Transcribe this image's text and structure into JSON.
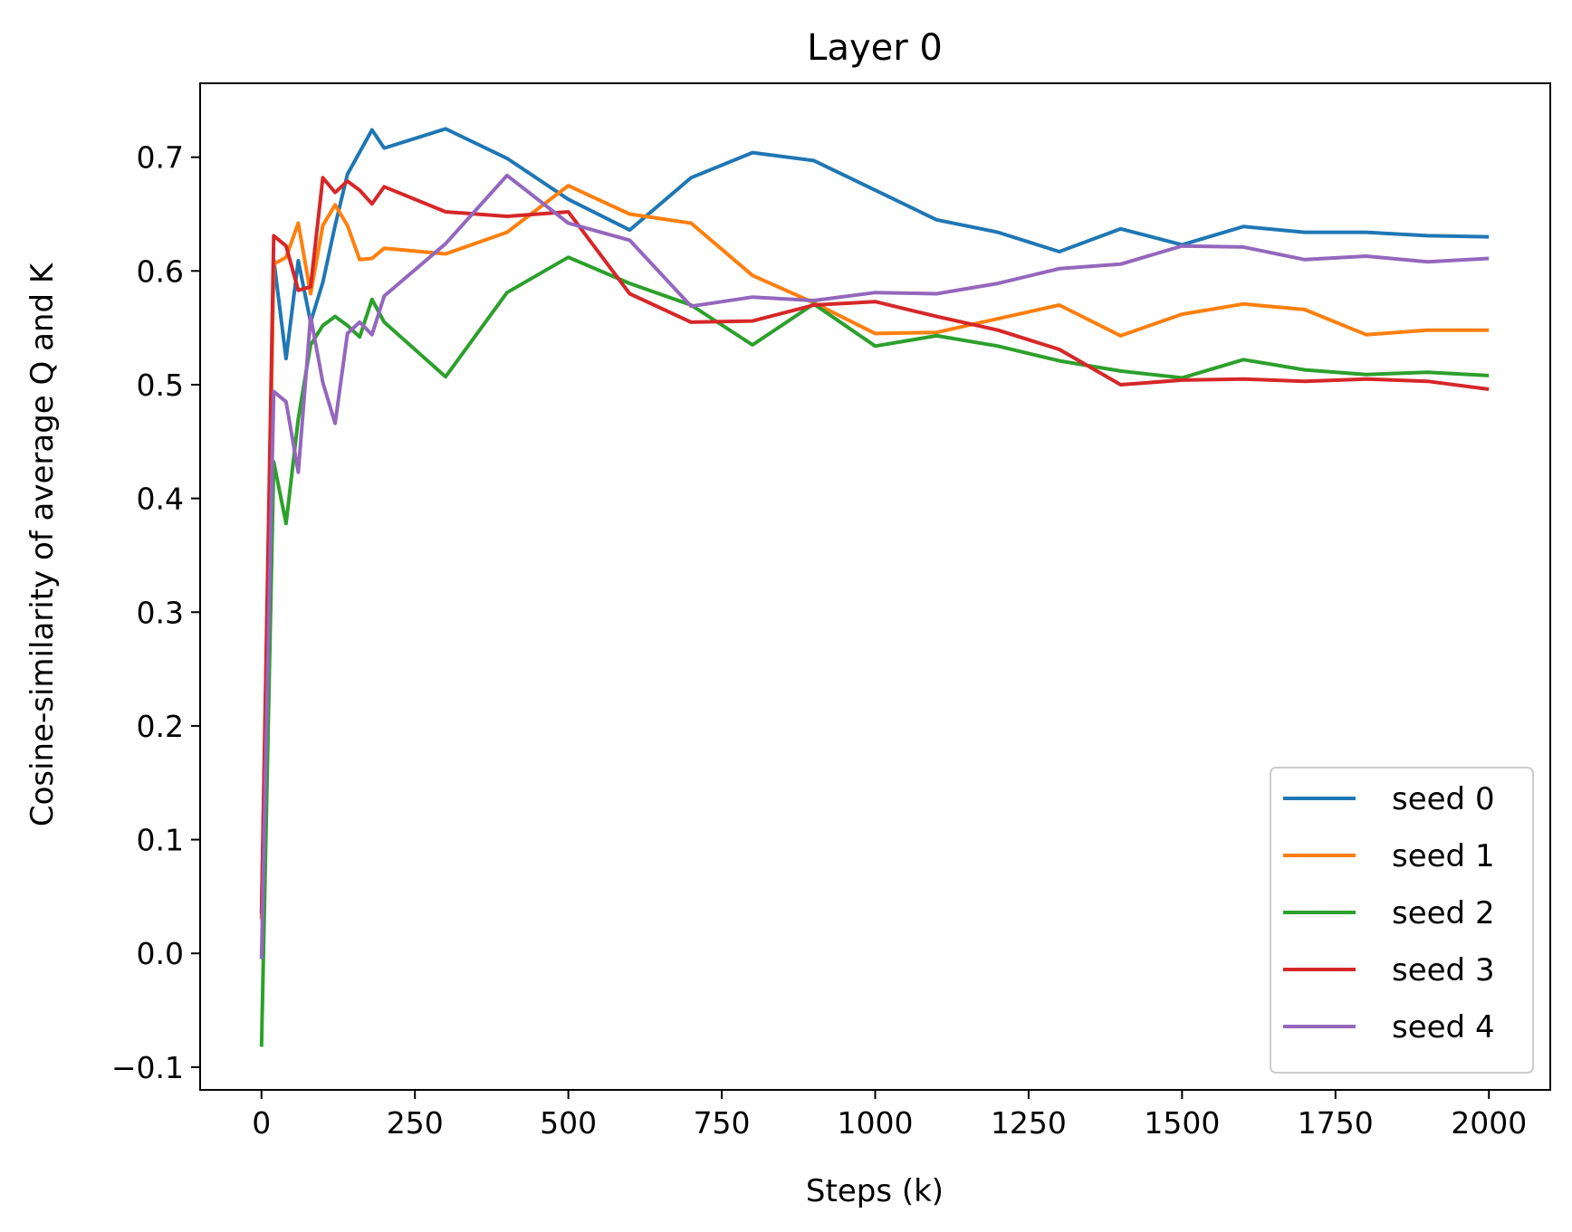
{
  "chart_data": {
    "type": "line",
    "title": "Layer 0",
    "xlabel": "Steps (k)",
    "ylabel": "Cosine-similarity of average Q and K",
    "xlim": [
      -100,
      2100
    ],
    "ylim": [
      -0.12,
      0.765
    ],
    "xticks": [
      0,
      250,
      500,
      750,
      1000,
      1250,
      1500,
      1750,
      2000
    ],
    "xtick_labels": [
      "0",
      "250",
      "500",
      "750",
      "1000",
      "1250",
      "1500",
      "1750",
      "2000"
    ],
    "yticks": [
      -0.1,
      0.0,
      0.1,
      0.2,
      0.3,
      0.4,
      0.5,
      0.6,
      0.7
    ],
    "ytick_labels": [
      "−0.1",
      "0.0",
      "0.1",
      "0.2",
      "0.3",
      "0.4",
      "0.5",
      "0.6",
      "0.7"
    ],
    "grid": false,
    "legend_position": "lower right",
    "series": [
      {
        "name": "seed 0",
        "color": "#1f77b4",
        "points": [
          [
            0,
            0.03
          ],
          [
            20,
            0.61
          ],
          [
            40,
            0.523
          ],
          [
            60,
            0.609
          ],
          [
            80,
            0.555
          ],
          [
            100,
            0.59
          ],
          [
            120,
            0.64
          ],
          [
            140,
            0.685
          ],
          [
            180,
            0.724
          ],
          [
            200,
            0.708
          ],
          [
            300,
            0.725
          ],
          [
            400,
            0.699
          ],
          [
            500,
            0.663
          ],
          [
            600,
            0.636
          ],
          [
            700,
            0.682
          ],
          [
            800,
            0.704
          ],
          [
            900,
            0.697
          ],
          [
            1000,
            0.671
          ],
          [
            1100,
            0.645
          ],
          [
            1200,
            0.634
          ],
          [
            1300,
            0.617
          ],
          [
            1400,
            0.637
          ],
          [
            1500,
            0.623
          ],
          [
            1600,
            0.639
          ],
          [
            1700,
            0.634
          ],
          [
            1800,
            0.634
          ],
          [
            1900,
            0.631
          ],
          [
            2000,
            0.63
          ]
        ]
      },
      {
        "name": "seed 1",
        "color": "#ff7f0e",
        "points": [
          [
            0,
            0.03
          ],
          [
            20,
            0.606
          ],
          [
            40,
            0.612
          ],
          [
            60,
            0.642
          ],
          [
            80,
            0.58
          ],
          [
            100,
            0.64
          ],
          [
            120,
            0.658
          ],
          [
            140,
            0.64
          ],
          [
            160,
            0.61
          ],
          [
            180,
            0.611
          ],
          [
            200,
            0.62
          ],
          [
            300,
            0.615
          ],
          [
            400,
            0.634
          ],
          [
            500,
            0.675
          ],
          [
            600,
            0.65
          ],
          [
            700,
            0.642
          ],
          [
            800,
            0.596
          ],
          [
            900,
            0.572
          ],
          [
            1000,
            0.545
          ],
          [
            1100,
            0.546
          ],
          [
            1200,
            0.558
          ],
          [
            1300,
            0.57
          ],
          [
            1400,
            0.543
          ],
          [
            1500,
            0.562
          ],
          [
            1600,
            0.571
          ],
          [
            1700,
            0.566
          ],
          [
            1800,
            0.544
          ],
          [
            1900,
            0.548
          ],
          [
            2000,
            0.548
          ]
        ]
      },
      {
        "name": "seed 2",
        "color": "#2ca02c",
        "points": [
          [
            0,
            -0.082
          ],
          [
            20,
            0.432
          ],
          [
            40,
            0.378
          ],
          [
            60,
            0.47
          ],
          [
            80,
            0.535
          ],
          [
            100,
            0.552
          ],
          [
            120,
            0.56
          ],
          [
            140,
            0.552
          ],
          [
            160,
            0.542
          ],
          [
            180,
            0.575
          ],
          [
            200,
            0.555
          ],
          [
            300,
            0.507
          ],
          [
            400,
            0.581
          ],
          [
            500,
            0.612
          ],
          [
            600,
            0.589
          ],
          [
            700,
            0.57
          ],
          [
            800,
            0.535
          ],
          [
            900,
            0.571
          ],
          [
            1000,
            0.534
          ],
          [
            1100,
            0.543
          ],
          [
            1200,
            0.534
          ],
          [
            1300,
            0.521
          ],
          [
            1400,
            0.512
          ],
          [
            1500,
            0.506
          ],
          [
            1600,
            0.522
          ],
          [
            1700,
            0.513
          ],
          [
            1800,
            0.509
          ],
          [
            1900,
            0.511
          ],
          [
            2000,
            0.508
          ]
        ]
      },
      {
        "name": "seed 3",
        "color": "#d62728",
        "points": [
          [
            0,
            0.035
          ],
          [
            20,
            0.631
          ],
          [
            40,
            0.622
          ],
          [
            60,
            0.583
          ],
          [
            80,
            0.586
          ],
          [
            100,
            0.682
          ],
          [
            120,
            0.669
          ],
          [
            140,
            0.679
          ],
          [
            160,
            0.671
          ],
          [
            180,
            0.659
          ],
          [
            200,
            0.674
          ],
          [
            300,
            0.652
          ],
          [
            400,
            0.648
          ],
          [
            500,
            0.652
          ],
          [
            600,
            0.58
          ],
          [
            700,
            0.555
          ],
          [
            800,
            0.556
          ],
          [
            900,
            0.57
          ],
          [
            1000,
            0.573
          ],
          [
            1100,
            0.56
          ],
          [
            1200,
            0.548
          ],
          [
            1300,
            0.531
          ],
          [
            1400,
            0.5
          ],
          [
            1500,
            0.504
          ],
          [
            1600,
            0.505
          ],
          [
            1700,
            0.503
          ],
          [
            1800,
            0.505
          ],
          [
            1900,
            0.503
          ],
          [
            2000,
            0.496
          ]
        ]
      },
      {
        "name": "seed 4",
        "color": "#9467bd",
        "points": [
          [
            0,
            -0.005
          ],
          [
            20,
            0.494
          ],
          [
            40,
            0.485
          ],
          [
            60,
            0.423
          ],
          [
            80,
            0.56
          ],
          [
            100,
            0.502
          ],
          [
            120,
            0.466
          ],
          [
            140,
            0.545
          ],
          [
            160,
            0.555
          ],
          [
            180,
            0.544
          ],
          [
            200,
            0.578
          ],
          [
            300,
            0.624
          ],
          [
            400,
            0.684
          ],
          [
            500,
            0.642
          ],
          [
            600,
            0.627
          ],
          [
            700,
            0.569
          ],
          [
            800,
            0.577
          ],
          [
            900,
            0.574
          ],
          [
            1000,
            0.581
          ],
          [
            1100,
            0.58
          ],
          [
            1200,
            0.589
          ],
          [
            1300,
            0.602
          ],
          [
            1400,
            0.606
          ],
          [
            1500,
            0.622
          ],
          [
            1600,
            0.621
          ],
          [
            1700,
            0.61
          ],
          [
            1800,
            0.613
          ],
          [
            1900,
            0.608
          ],
          [
            2000,
            0.611
          ]
        ]
      }
    ]
  }
}
